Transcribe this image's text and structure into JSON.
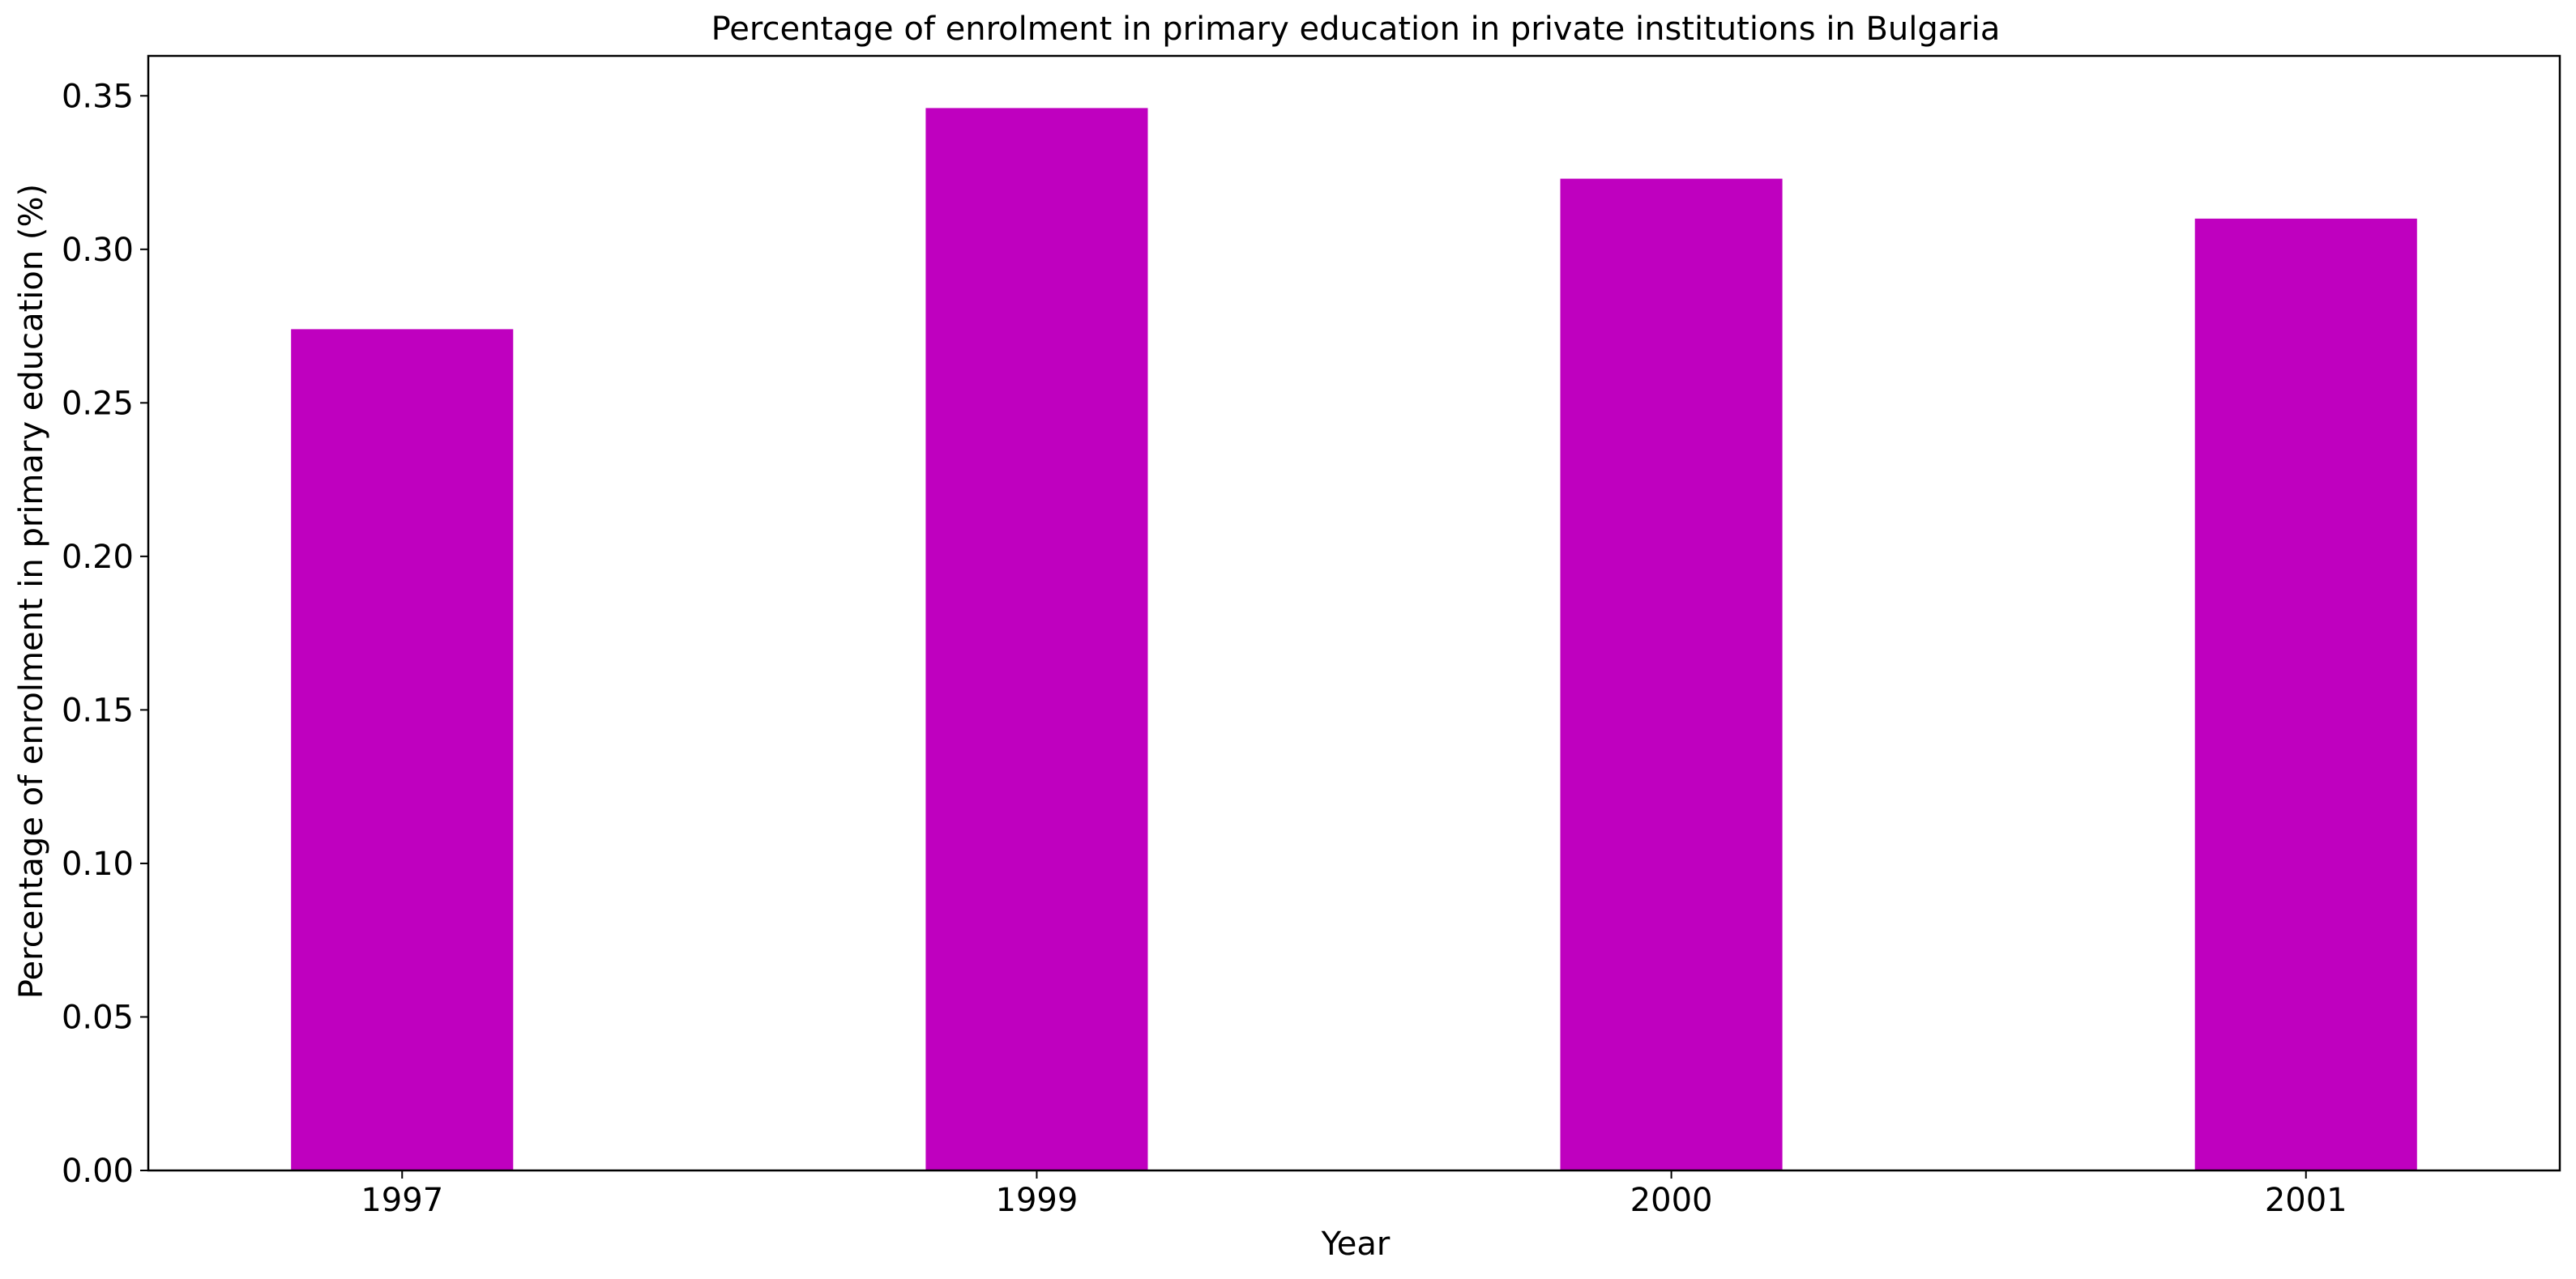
{
  "chart_data": {
    "type": "bar",
    "title": "Percentage of enrolment in primary education in private institutions in Bulgaria",
    "xlabel": "Year",
    "ylabel": "Percentage of enrolment in primary education (%)",
    "categories": [
      "1997",
      "1999",
      "2000",
      "2001"
    ],
    "values": [
      0.274,
      0.346,
      0.323,
      0.31
    ],
    "ylim": [
      0,
      0.363
    ],
    "yticks": [
      "0.00",
      "0.05",
      "0.10",
      "0.15",
      "0.20",
      "0.25",
      "0.30",
      "0.35"
    ],
    "grid": false,
    "legend": "none",
    "bar_color": "#bf00bf"
  }
}
